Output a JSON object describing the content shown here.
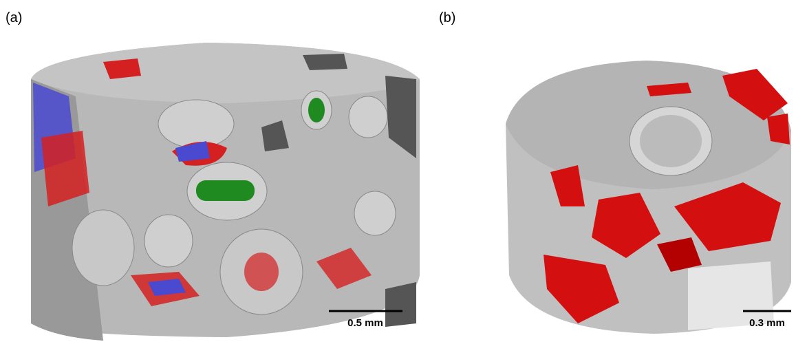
{
  "panels": [
    {
      "label": "(a)",
      "scale_bar": "0.5 mm"
    },
    {
      "label": "(b)",
      "scale_bar": "0.3 mm"
    }
  ]
}
